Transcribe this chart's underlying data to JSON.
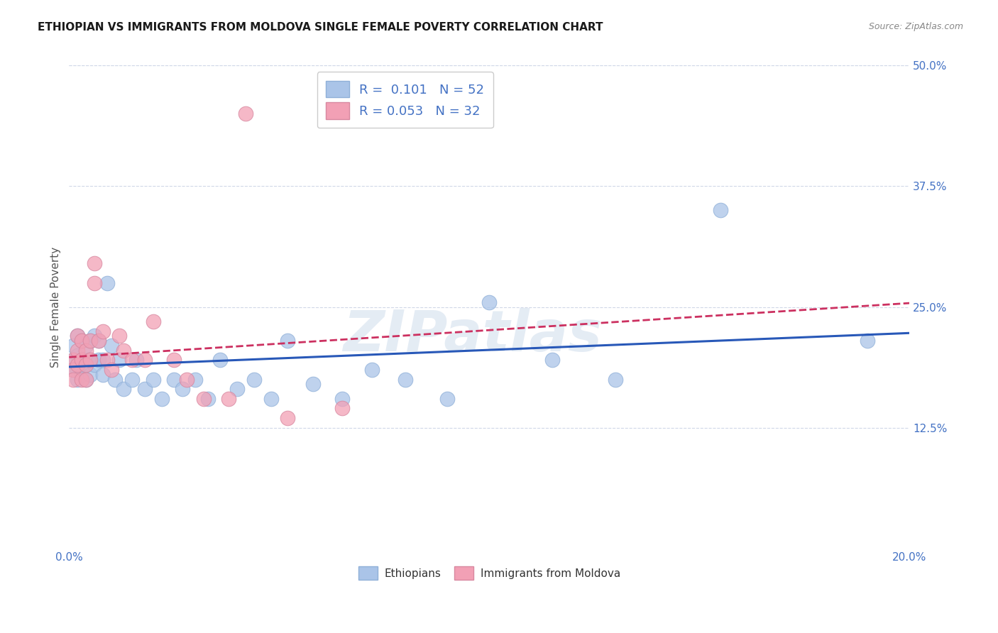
{
  "title": "ETHIOPIAN VS IMMIGRANTS FROM MOLDOVA SINGLE FEMALE POVERTY CORRELATION CHART",
  "source": "Source: ZipAtlas.com",
  "ylabel": "Single Female Poverty",
  "watermark": "ZIPatlas",
  "xlim": [
    0.0,
    0.2
  ],
  "ylim": [
    0.0,
    0.5
  ],
  "ytick_labels": [
    "12.5%",
    "25.0%",
    "37.5%",
    "50.0%"
  ],
  "ytick_vals": [
    0.125,
    0.25,
    0.375,
    0.5
  ],
  "legend_labels": [
    "Ethiopians",
    "Immigrants from Moldova"
  ],
  "R_blue": "0.101",
  "N_blue": "52",
  "R_pink": "0.053",
  "N_pink": "32",
  "blue_color": "#aac4e8",
  "pink_color": "#f2a0b5",
  "line_blue": "#2858b8",
  "line_pink": "#cc3060",
  "title_color": "#1a1a1a",
  "source_color": "#888888",
  "axis_label_color": "#4472c4",
  "grid_color": "#d0d8e8",
  "background": "#ffffff",
  "ethiopians_x": [
    0.001,
    0.001,
    0.001,
    0.002,
    0.002,
    0.002,
    0.002,
    0.003,
    0.003,
    0.003,
    0.003,
    0.004,
    0.004,
    0.004,
    0.005,
    0.005,
    0.005,
    0.006,
    0.006,
    0.007,
    0.007,
    0.008,
    0.008,
    0.009,
    0.01,
    0.011,
    0.012,
    0.013,
    0.015,
    0.016,
    0.018,
    0.02,
    0.022,
    0.025,
    0.027,
    0.03,
    0.033,
    0.036,
    0.04,
    0.044,
    0.048,
    0.052,
    0.058,
    0.065,
    0.072,
    0.08,
    0.09,
    0.1,
    0.115,
    0.13,
    0.155,
    0.19
  ],
  "ethiopians_y": [
    0.21,
    0.195,
    0.185,
    0.22,
    0.2,
    0.185,
    0.175,
    0.215,
    0.195,
    0.18,
    0.195,
    0.21,
    0.19,
    0.175,
    0.215,
    0.195,
    0.18,
    0.22,
    0.19,
    0.215,
    0.195,
    0.195,
    0.18,
    0.275,
    0.21,
    0.175,
    0.195,
    0.165,
    0.175,
    0.195,
    0.165,
    0.175,
    0.155,
    0.175,
    0.165,
    0.175,
    0.155,
    0.195,
    0.165,
    0.175,
    0.155,
    0.215,
    0.17,
    0.155,
    0.185,
    0.175,
    0.155,
    0.255,
    0.195,
    0.175,
    0.35,
    0.215
  ],
  "moldova_x": [
    0.001,
    0.001,
    0.001,
    0.002,
    0.002,
    0.002,
    0.003,
    0.003,
    0.003,
    0.004,
    0.004,
    0.004,
    0.005,
    0.005,
    0.006,
    0.006,
    0.007,
    0.008,
    0.009,
    0.01,
    0.012,
    0.013,
    0.015,
    0.018,
    0.02,
    0.025,
    0.028,
    0.032,
    0.038,
    0.042,
    0.052,
    0.065
  ],
  "moldova_y": [
    0.195,
    0.185,
    0.175,
    0.22,
    0.205,
    0.19,
    0.215,
    0.195,
    0.175,
    0.205,
    0.19,
    0.175,
    0.215,
    0.195,
    0.275,
    0.295,
    0.215,
    0.225,
    0.195,
    0.185,
    0.22,
    0.205,
    0.195,
    0.195,
    0.235,
    0.195,
    0.175,
    0.155,
    0.155,
    0.45,
    0.135,
    0.145
  ],
  "blue_intercept": 0.188,
  "blue_slope": 0.175,
  "pink_intercept": 0.198,
  "pink_slope": 0.28
}
